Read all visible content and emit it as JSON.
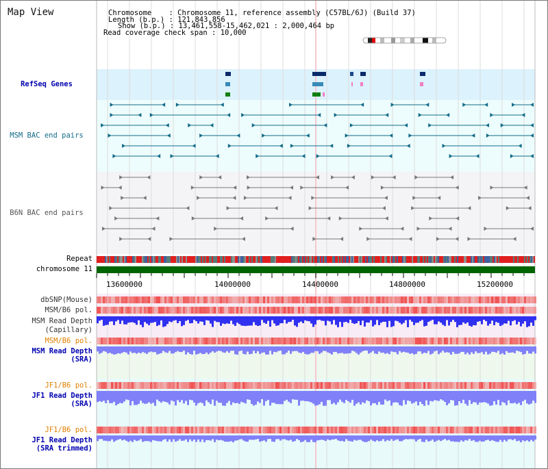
{
  "title": "Map View",
  "info": {
    "chromosome_label": "Chromosome",
    "chromosome_value": "Chromosome 11, reference assembly (C57BL/6J) (Build 37)",
    "length_label": "Length (b.p.)",
    "length_value": "121,843,856",
    "show_label": "Show (b.p.)",
    "show_value": "13,461,558-15,462,021 : 2,000,464 bp",
    "coverage_label": "Read coverage check span",
    "coverage_value": "10,000"
  },
  "tracks": {
    "refseq": "RefSeq Genes",
    "msm_bac": "MSM BAC end pairs",
    "b6n_bac": "B6N BAC end pairs",
    "repeat": "Repeat",
    "chromosome": "chromosome 11",
    "dbsnp": "dbSNP(Mouse)",
    "msm_b6_pol_1": "MSM/B6 pol.",
    "msm_read_depth_cap_1": "MSM Read Depth",
    "msm_read_depth_cap_2": "(Capillary)",
    "msm_b6_pol_2": "MSM/B6 pol.",
    "msm_read_depth_sra_1": "MSM Read Depth",
    "msm_read_depth_sra_2": "(SRA)",
    "jf1_b6_pol_1": "JF1/B6 pol.",
    "jf1_read_depth_sra_1": "JF1 Read Depth",
    "jf1_read_depth_sra_2": "(SRA)",
    "jf1_b6_pol_2": "JF1/B6 pol.",
    "jf1_read_depth_trim_1": "JF1 Read Depth",
    "jf1_read_depth_trim_2": "(SRA trimmed)"
  },
  "axis": {
    "ticks": [
      "13600000",
      "14000000",
      "14400000",
      "14800000",
      "15200000"
    ]
  },
  "colors": {
    "refseq_bg": "#dcf2fc",
    "bac_bg": "#edfcfc",
    "b6n_bg": "#f4f4f6",
    "snp_red": "#f03030",
    "depth_blue": "#3030f0",
    "depth_light": "#8080f8",
    "chrom_green": "#006400",
    "orange_label": "#e08000",
    "blue_label": "#0000b0",
    "teal": "#116b88"
  }
}
